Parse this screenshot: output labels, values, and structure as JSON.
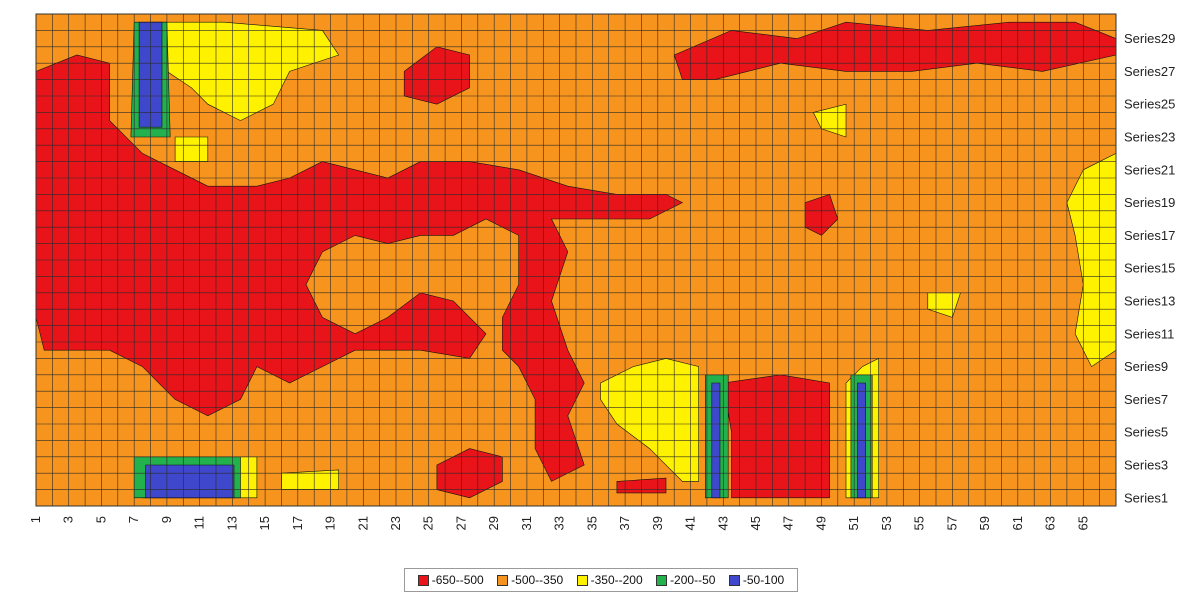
{
  "chart_data": {
    "type": "heatmap",
    "title": "",
    "xlabel": "",
    "ylabel": "",
    "x_categories": [
      1,
      2,
      3,
      4,
      5,
      6,
      7,
      8,
      9,
      10,
      11,
      12,
      13,
      14,
      15,
      16,
      17,
      18,
      19,
      20,
      21,
      22,
      23,
      24,
      25,
      26,
      27,
      28,
      29,
      30,
      31,
      32,
      33,
      34,
      35,
      36,
      37,
      38,
      39,
      40,
      41,
      42,
      43,
      44,
      45,
      46,
      47,
      48,
      49,
      50,
      51,
      52,
      53,
      54,
      55,
      56,
      57,
      58,
      59,
      60,
      61,
      62,
      63,
      64,
      65,
      66
    ],
    "x_tick_labels": [
      "1",
      "3",
      "5",
      "7",
      "9",
      "11",
      "13",
      "15",
      "17",
      "19",
      "21",
      "23",
      "25",
      "27",
      "29",
      "31",
      "33",
      "35",
      "37",
      "39",
      "41",
      "43",
      "45",
      "47",
      "49",
      "51",
      "53",
      "55",
      "57",
      "59",
      "61",
      "63",
      "65"
    ],
    "y_tick_labels": [
      "Series1",
      "Series3",
      "Series5",
      "Series7",
      "Series9",
      "Series11",
      "Series13",
      "Series15",
      "Series17",
      "Series19",
      "Series21",
      "Series23",
      "Series25",
      "Series27",
      "Series29"
    ],
    "series_count": 30,
    "bands": [
      {
        "label": "-650--500",
        "color": "#e8141a"
      },
      {
        "label": "-500--350",
        "color": "#f7941d"
      },
      {
        "label": "-350--200",
        "color": "#fff200"
      },
      {
        "label": "-200--50",
        "color": "#22b14c"
      },
      {
        "label": "-50-100",
        "color": "#3f48cc"
      }
    ],
    "grid": true,
    "legend_position": "bottom"
  }
}
